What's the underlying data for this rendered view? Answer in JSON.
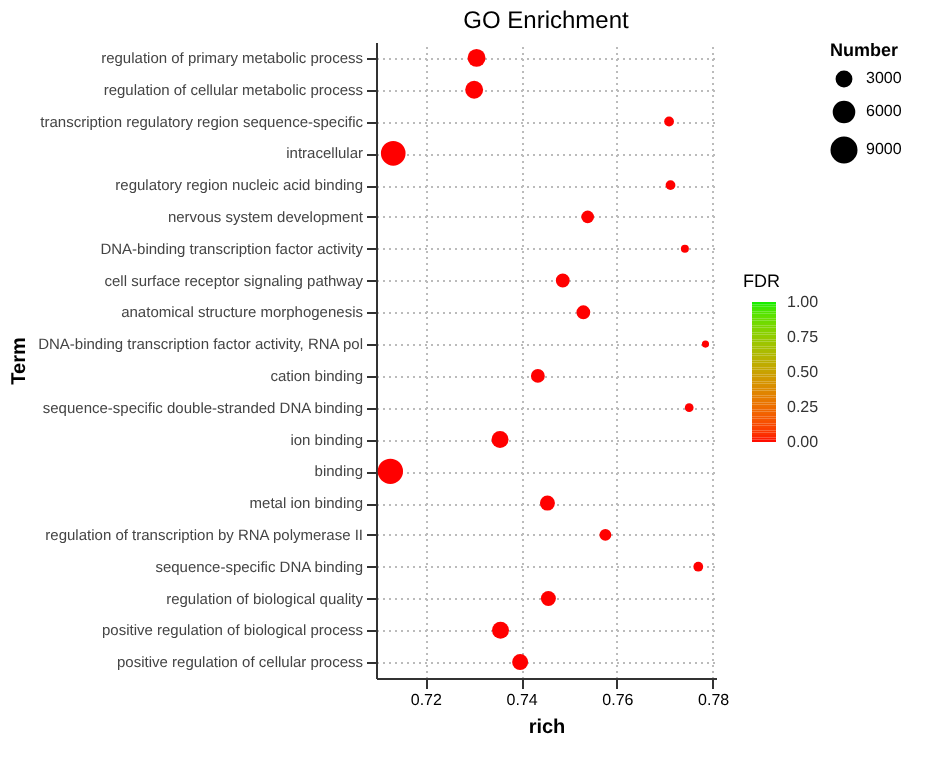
{
  "chart_data": {
    "type": "bubble",
    "title": "GO Enrichment",
    "xlabel": "rich",
    "ylabel": "Term",
    "legend_title": "Number",
    "clabel": "FDR",
    "categories": [
      "regulation of primary metabolic process",
      "regulation of cellular metabolic process",
      "transcription regulatory region sequence-specific",
      "intracellular",
      "regulatory region nucleic acid binding",
      "nervous system development",
      "DNA-binding transcription factor activity",
      "cell surface receptor signaling pathway",
      "anatomical structure morphogenesis",
      "DNA-binding transcription factor activity, RNA pol",
      "cation binding",
      "sequence-specific double-stranded DNA binding",
      "ion binding",
      "binding",
      "metal ion binding",
      "regulation of transcription by RNA polymerase II",
      "sequence-specific DNA binding",
      "regulation of biological quality",
      "positive regulation of biological process",
      "positive regulation of cellular process"
    ],
    "orientation": "horizontal",
    "values": [
      0.7307,
      0.7302,
      0.7709,
      0.7133,
      0.7712,
      0.7539,
      0.7742,
      0.7487,
      0.753,
      0.7785,
      0.7435,
      0.7751,
      0.7356,
      0.7127,
      0.7455,
      0.7576,
      0.777,
      0.7457,
      0.7357,
      0.7398
    ],
    "sizes": [
      5000,
      5000,
      1500,
      9500,
      1500,
      2500,
      1000,
      3000,
      3000,
      800,
      3000,
      1200,
      4500,
      10000,
      3500,
      2200,
      1500,
      3500,
      4500,
      4000
    ],
    "cvalues": [
      0,
      0,
      0,
      0,
      0,
      0,
      0,
      0,
      0,
      0,
      0,
      0,
      0,
      0,
      0,
      0,
      0,
      0,
      0,
      0
    ],
    "size_legend": [
      3000,
      6000,
      9000
    ],
    "clim": [
      0,
      1
    ],
    "cticks": [
      {
        "value": 0,
        "label": "0.00"
      },
      0.25,
      {
        "value": 0.5,
        "label": "0.50"
      },
      0.75,
      {
        "value": 1,
        "label": "1.00"
      }
    ],
    "xlim": [
      0.7097,
      0.7807
    ],
    "xticks": [
      0.72,
      0.74,
      0.76,
      0.78
    ],
    "grid": true
  }
}
